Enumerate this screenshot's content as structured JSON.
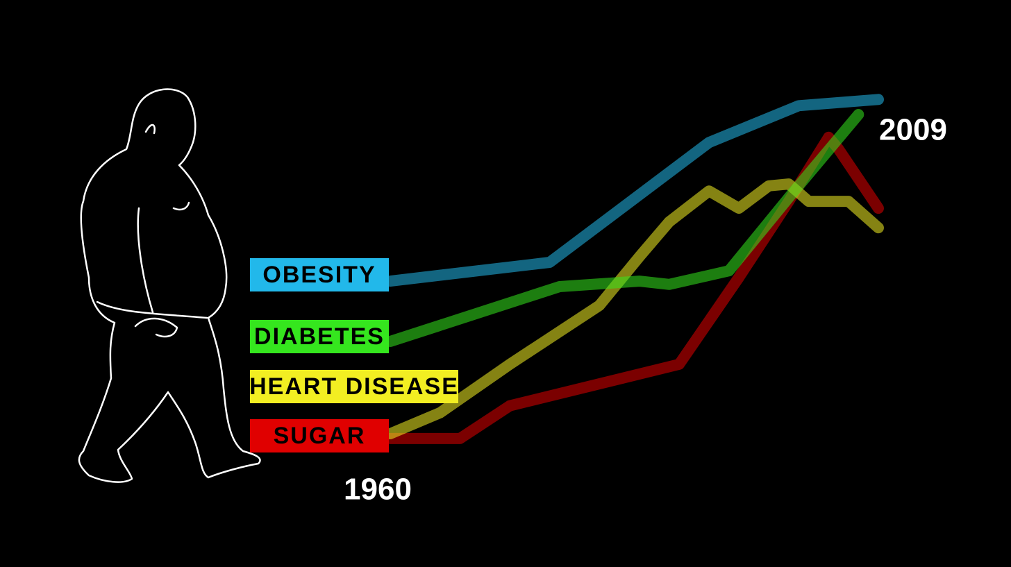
{
  "chart_data": {
    "type": "line",
    "xlim": [
      1960,
      2009
    ],
    "ylim": [
      0,
      100
    ],
    "xticks": [
      1960,
      2009
    ],
    "series": [
      {
        "name": "OBESITY",
        "color": "#22b8ea",
        "x": [
          1960,
          1976,
          1992,
          2001,
          2009
        ],
        "values": [
          48.1,
          53.2,
          85.8,
          95.8,
          97.5
        ]
      },
      {
        "name": "DIABETES",
        "color": "#35e61e",
        "x": [
          1960,
          1977,
          1985,
          1988,
          1994,
          2000,
          2007
        ],
        "values": [
          31.7,
          46.6,
          48.1,
          47.2,
          50.9,
          70.8,
          93.4
        ]
      },
      {
        "name": "HEART DISEASE",
        "color": "#f2ee22",
        "x": [
          1960,
          1965,
          1972,
          1981,
          1985,
          1988,
          1992,
          1995,
          1998,
          2000,
          2002,
          2006,
          2009
        ],
        "values": [
          6.6,
          12.3,
          25.5,
          41.5,
          54.7,
          64.2,
          72.6,
          67.9,
          74.0,
          74.5,
          69.8,
          69.8,
          62.6
        ]
      },
      {
        "name": "SUGAR",
        "color": "#e00000",
        "x": [
          1960,
          1967,
          1972,
          1989,
          1995,
          2000,
          2004,
          2005,
          2009
        ],
        "values": [
          5.3,
          5.3,
          14.2,
          25.5,
          49.1,
          69.8,
          87.2,
          84.0,
          67.9
        ]
      }
    ]
  }
}
